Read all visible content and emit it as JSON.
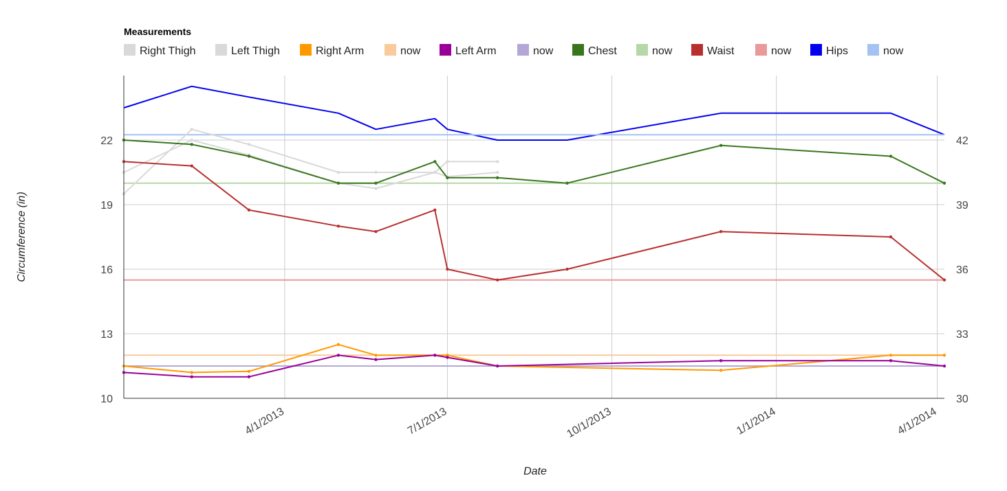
{
  "chart_data": {
    "type": "line",
    "legend_title": "Measurements",
    "xlabel": "Date",
    "ylabel": "Circumference (in)",
    "left_axis": {
      "ticks": [
        10,
        13,
        16,
        19,
        22
      ],
      "range": [
        10,
        25
      ]
    },
    "right_axis": {
      "ticks": [
        30,
        33,
        36,
        39,
        42
      ],
      "range": [
        30,
        45
      ]
    },
    "x_axis": {
      "ticks": [
        "4/1/2013",
        "7/1/2013",
        "10/1/2013",
        "1/1/2014",
        "4/1/2014"
      ],
      "range": [
        "2013-01-01",
        "2014-04-05"
      ]
    },
    "grid": true,
    "legend_position": "top",
    "series": [
      {
        "name": "Right Thigh",
        "color": "#d9d9d9",
        "axis": "left",
        "markers": true,
        "points": [
          [
            "2013-01-01",
            19.5
          ],
          [
            "2013-02-08",
            22.5
          ],
          [
            "2013-03-12",
            21.8
          ],
          [
            "2013-05-01",
            20.5
          ],
          [
            "2013-05-22",
            20.5
          ],
          [
            "2013-06-24",
            20.5
          ],
          [
            "2013-07-01",
            21.0
          ],
          [
            "2013-07-29",
            21.0
          ]
        ]
      },
      {
        "name": "Left Thigh",
        "color": "#d9d9d9",
        "axis": "left",
        "markers": true,
        "points": [
          [
            "2013-01-01",
            20.5
          ],
          [
            "2013-02-08",
            22.0
          ],
          [
            "2013-03-12",
            21.3
          ],
          [
            "2013-05-01",
            20.0
          ],
          [
            "2013-05-22",
            19.75
          ],
          [
            "2013-06-24",
            20.5
          ],
          [
            "2013-07-01",
            20.3
          ],
          [
            "2013-07-29",
            20.5
          ]
        ]
      },
      {
        "name": "Right Arm",
        "color": "#ff9900",
        "axis": "left",
        "markers": true,
        "points": [
          [
            "2013-01-01",
            11.5
          ],
          [
            "2013-02-08",
            11.2
          ],
          [
            "2013-03-12",
            11.25
          ],
          [
            "2013-05-01",
            12.5
          ],
          [
            "2013-05-22",
            12.0
          ],
          [
            "2013-06-24",
            12.0
          ],
          [
            "2013-07-01",
            12.0
          ],
          [
            "2013-07-29",
            11.5
          ],
          [
            "2013-12-01",
            11.3
          ],
          [
            "2014-03-06",
            12.0
          ],
          [
            "2014-04-05",
            12.0
          ]
        ]
      },
      {
        "name": "now",
        "color": "#f9cb9c",
        "axis": "left",
        "markers": false,
        "points": [
          [
            "2013-01-01",
            12.0
          ],
          [
            "2014-04-05",
            12.0
          ]
        ]
      },
      {
        "name": "Left Arm",
        "color": "#990099",
        "axis": "left",
        "markers": true,
        "points": [
          [
            "2013-01-01",
            11.2
          ],
          [
            "2013-02-08",
            11.0
          ],
          [
            "2013-03-12",
            11.0
          ],
          [
            "2013-05-01",
            12.0
          ],
          [
            "2013-05-22",
            11.8
          ],
          [
            "2013-06-24",
            12.0
          ],
          [
            "2013-07-01",
            11.9
          ],
          [
            "2013-07-29",
            11.5
          ],
          [
            "2013-12-01",
            11.75
          ],
          [
            "2014-03-06",
            11.75
          ],
          [
            "2014-04-05",
            11.5
          ]
        ]
      },
      {
        "name": "now",
        "color": "#b4a7d6",
        "axis": "left",
        "markers": false,
        "points": [
          [
            "2013-01-01",
            11.5
          ],
          [
            "2014-04-05",
            11.5
          ]
        ]
      },
      {
        "name": "Chest",
        "color": "#38761d",
        "axis": "left",
        "markers": true,
        "points": [
          [
            "2013-01-01",
            22.0
          ],
          [
            "2013-02-08",
            21.8
          ],
          [
            "2013-03-12",
            21.25
          ],
          [
            "2013-05-01",
            20.0
          ],
          [
            "2013-05-22",
            20.0
          ],
          [
            "2013-06-24",
            21.0
          ],
          [
            "2013-07-01",
            20.25
          ],
          [
            "2013-07-29",
            20.25
          ],
          [
            "2013-09-06",
            20.0
          ],
          [
            "2013-12-01",
            21.75
          ],
          [
            "2014-03-06",
            21.25
          ],
          [
            "2014-04-05",
            20.0
          ]
        ]
      },
      {
        "name": "now",
        "color": "#b6d7a8",
        "axis": "left",
        "markers": false,
        "points": [
          [
            "2013-01-01",
            20.0
          ],
          [
            "2014-04-05",
            20.0
          ]
        ]
      },
      {
        "name": "Waist",
        "color": "#b7302f",
        "axis": "right",
        "markers": true,
        "points": [
          [
            "2013-01-01",
            41.0
          ],
          [
            "2013-02-08",
            40.8
          ],
          [
            "2013-03-12",
            38.75
          ],
          [
            "2013-05-01",
            38.0
          ],
          [
            "2013-05-22",
            37.75
          ],
          [
            "2013-06-24",
            38.75
          ],
          [
            "2013-07-01",
            36.0
          ],
          [
            "2013-07-29",
            35.5
          ],
          [
            "2013-09-06",
            36.0
          ],
          [
            "2013-12-01",
            37.75
          ],
          [
            "2014-03-06",
            37.5
          ],
          [
            "2014-04-05",
            35.5
          ]
        ]
      },
      {
        "name": "now",
        "color": "#ea9999",
        "axis": "right",
        "markers": false,
        "points": [
          [
            "2013-01-01",
            35.5
          ],
          [
            "2014-04-05",
            35.5
          ]
        ]
      },
      {
        "name": "Hips",
        "color": "#0000ee",
        "axis": "right",
        "markers": false,
        "points": [
          [
            "2013-01-01",
            43.5
          ],
          [
            "2013-02-08",
            44.5
          ],
          [
            "2013-03-12",
            44.0
          ],
          [
            "2013-05-01",
            43.25
          ],
          [
            "2013-05-22",
            42.5
          ],
          [
            "2013-06-24",
            43.0
          ],
          [
            "2013-07-01",
            42.5
          ],
          [
            "2013-07-29",
            42.0
          ],
          [
            "2013-09-06",
            42.0
          ],
          [
            "2013-12-01",
            43.25
          ],
          [
            "2014-03-06",
            43.25
          ],
          [
            "2014-04-05",
            42.25
          ]
        ]
      },
      {
        "name": "now",
        "color": "#a4c2f4",
        "axis": "right",
        "markers": false,
        "points": [
          [
            "2013-01-01",
            42.25
          ],
          [
            "2014-04-05",
            42.25
          ]
        ]
      }
    ]
  }
}
